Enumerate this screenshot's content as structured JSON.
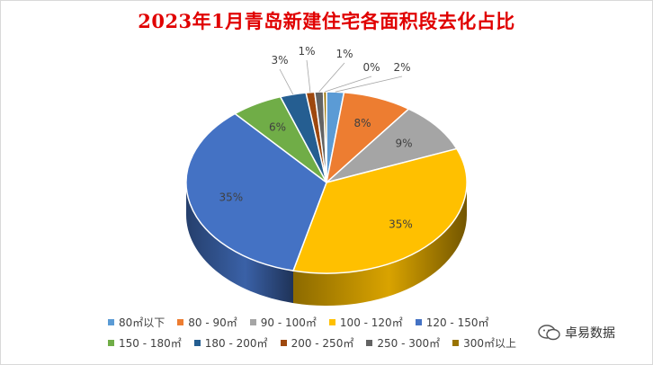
{
  "chart_data": {
    "type": "pie",
    "title": "2023年1月青岛新建住宅各面积段去化占比",
    "categories": [
      "80㎡以下",
      "80 - 90㎡",
      "90 - 100㎡",
      "100 - 120㎡",
      "120 - 150㎡",
      "150 - 180㎡",
      "180 - 200㎡",
      "200 - 250㎡",
      "250 - 300㎡",
      "300㎡以上"
    ],
    "values": [
      2,
      8,
      9,
      35,
      35,
      6,
      3,
      1,
      1,
      0
    ],
    "labels": [
      "2%",
      "8%",
      "9%",
      "35%",
      "35%",
      "6%",
      "3%",
      "1%",
      "1%",
      "0%"
    ],
    "colors": [
      "#5B9BD5",
      "#ED7D31",
      "#A5A5A5",
      "#FFC000",
      "#4472C4",
      "#70AD47",
      "#255E91",
      "#9E480E",
      "#636363",
      "#997300"
    ],
    "legend_position": "bottom",
    "style": "3d"
  },
  "watermark": {
    "text": "卓易数据"
  }
}
